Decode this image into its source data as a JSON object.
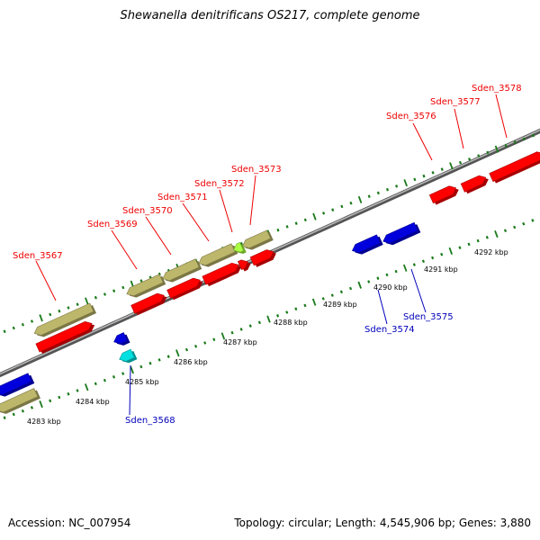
{
  "header": {
    "title": "Shewanella denitrificans OS217, complete genome"
  },
  "footer": {
    "accession": "Accession: NC_007954",
    "summary": "Topology: circular; Length: 4,545,906 bp; Genes: 3,880"
  },
  "colors": {
    "backbone": "#808080",
    "tick": "#1a7a1a",
    "gene_red": "#ff0000",
    "gene_khaki": "#bdb76b",
    "gene_blue": "#0000dd",
    "gene_cyan": "#00e0e0",
    "gene_lime": "#aaff44",
    "label_red": "#ee0000",
    "label_blue": "#0000bb"
  },
  "scale_labels": [
    "4283 kbp",
    "4284 kbp",
    "4285 kbp",
    "4286 kbp",
    "4287 kbp",
    "4288 kbp",
    "4289 kbp",
    "4290 kbp",
    "4291 kbp",
    "4292 kbp"
  ],
  "gene_labels_top": [
    "Sden_3567",
    "Sden_3569",
    "Sden_3570",
    "Sden_3571",
    "Sden_3572",
    "Sden_3573",
    "Sden_3576",
    "Sden_3577",
    "Sden_3578"
  ],
  "gene_labels_bottom": [
    "Sden_3568",
    "Sden_3574",
    "Sden_3575"
  ]
}
